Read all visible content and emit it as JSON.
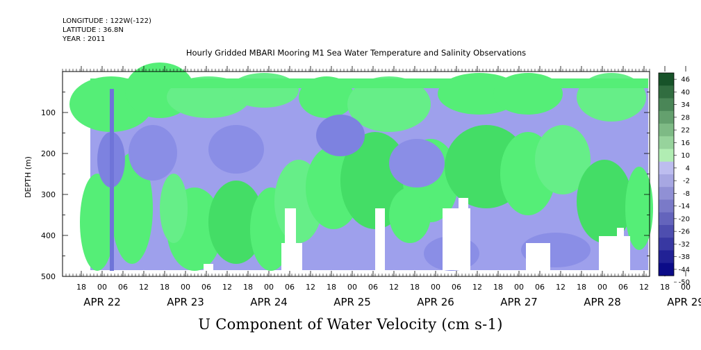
{
  "header": {
    "longitude": "LONGITUDE : 122W(-122)",
    "latitude": "LATITUDE : 36.8N",
    "year": "YEAR : 2011"
  },
  "chart_data": {
    "type": "heatmap",
    "title": "Hourly Gridded MBARI Mooring M1 Sea Water Temperature and Salinity Observations",
    "xlabel": "U Component of Water Velocity (cm s-1)",
    "ylabel": "DEPTH (m)",
    "ylim": [
      500,
      0
    ],
    "y_ticks": [
      100,
      200,
      300,
      400,
      500
    ],
    "x_hour_ticks": [
      "18",
      "00",
      "06",
      "12",
      "18",
      "00",
      "06",
      "12",
      "18",
      "00",
      "06",
      "12",
      "18",
      "00",
      "06",
      "12",
      "18",
      "00",
      "06",
      "12",
      "18",
      "00",
      "06",
      "12",
      "18",
      "00",
      "06",
      "12",
      "18",
      "00",
      "06",
      "12"
    ],
    "x_date_labels": [
      "APR 22",
      "APR 23",
      "APR 24",
      "APR 25",
      "APR 26",
      "APR 27",
      "APR 28",
      "APR 29"
    ],
    "colorbar_levels": [
      46,
      40,
      34,
      28,
      22,
      16,
      10,
      4,
      -2,
      -8,
      -14,
      -20,
      -26,
      -32,
      -38,
      -44,
      -50
    ],
    "colors": {
      "positive": "#55ee77",
      "negative": "#9999e6",
      "strong_positive": "#22cc44",
      "strong_negative": "#6666dd",
      "nodata": "#ffffff"
    }
  }
}
